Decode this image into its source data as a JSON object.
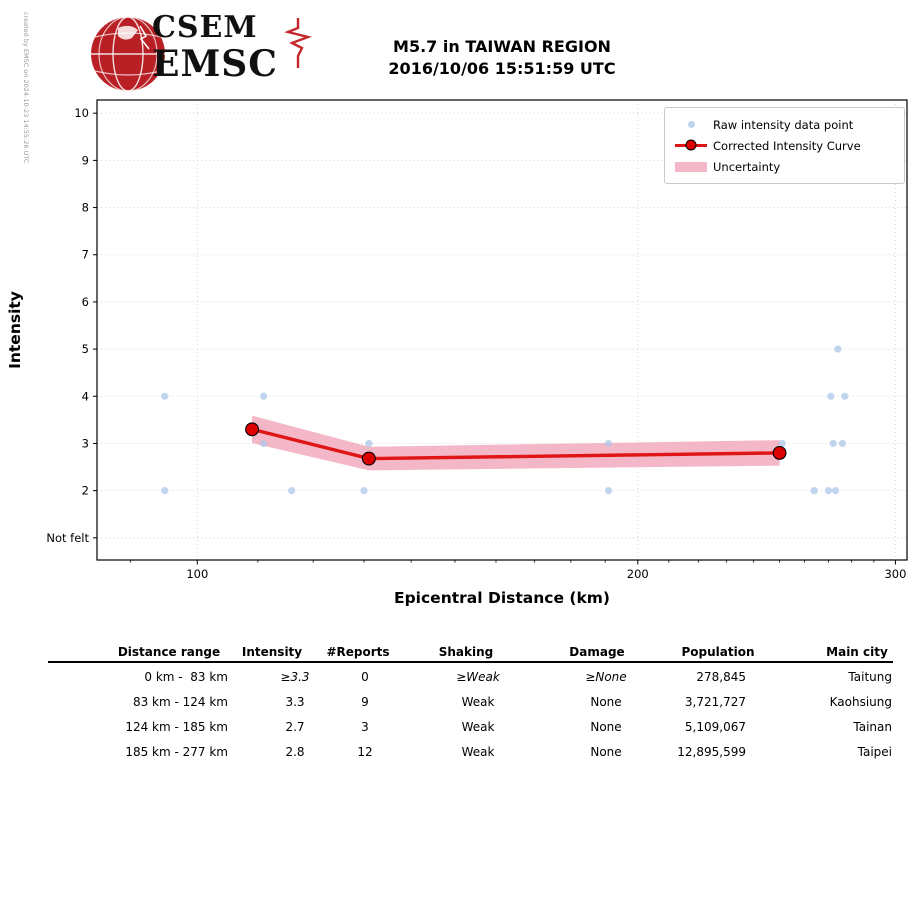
{
  "credit": "created by EMSC on 2024-10-23 14:55:26 UTC",
  "logo": {
    "org_top": "CSEM",
    "org_bottom": "EMSC"
  },
  "title": {
    "line1": "M5.7 in TAIWAN REGION",
    "line2": "2016/10/06 15:51:59 UTC"
  },
  "legend": {
    "raw": "Raw intensity data point",
    "curve": "Corrected Intensity Curve",
    "uncertainty": "Uncertainty"
  },
  "colors": {
    "raw_point": "#aec7e8",
    "curve": "#e01515",
    "marker_face": "#dd0000",
    "band": "#f2afc1",
    "grid": "#cccccc",
    "logo_red": "#b92025"
  },
  "chart_data": {
    "type": "scatter+line",
    "title": "M5.7 in TAIWAN REGION 2016/10/06 15:51:59 UTC",
    "xlabel": "Epicentral Distance (km)",
    "ylabel": "Intensity",
    "x_scale": "log",
    "x_range": [
      85.4,
      305.5
    ],
    "y_range": [
      0.53,
      10.28
    ],
    "x_ticks": [
      {
        "v": 100,
        "label": "100"
      },
      {
        "v": 200,
        "label": "200"
      },
      {
        "v": 300,
        "label": "300"
      }
    ],
    "x_minor_ticks": [
      90,
      110,
      120,
      130,
      140,
      150,
      160,
      170,
      180,
      190,
      210,
      220,
      230,
      240,
      250,
      260,
      270,
      280,
      290
    ],
    "y_ticks": [
      {
        "v": 10,
        "label": "10"
      },
      {
        "v": 9,
        "label": "9"
      },
      {
        "v": 8,
        "label": "8"
      },
      {
        "v": 7,
        "label": "7"
      },
      {
        "v": 6,
        "label": "6"
      },
      {
        "v": 5,
        "label": "5"
      },
      {
        "v": 4,
        "label": "4"
      },
      {
        "v": 3,
        "label": "3"
      },
      {
        "v": 2,
        "label": "2"
      },
      {
        "v": 1,
        "label": "Not felt"
      }
    ],
    "grid": true,
    "legend_position": "upper right",
    "raw_points": [
      [
        95,
        4
      ],
      [
        95,
        2
      ],
      [
        111,
        4
      ],
      [
        111,
        3
      ],
      [
        116,
        2
      ],
      [
        130,
        2
      ],
      [
        131,
        3
      ],
      [
        191,
        3
      ],
      [
        191,
        2
      ],
      [
        251,
        3
      ],
      [
        264,
        2
      ],
      [
        270,
        2
      ],
      [
        271,
        4
      ],
      [
        272,
        3
      ],
      [
        273,
        2
      ],
      [
        274,
        5
      ],
      [
        276,
        3
      ],
      [
        277,
        4
      ]
    ],
    "corrected_curve": [
      [
        109,
        3.3
      ],
      [
        131,
        2.68
      ],
      [
        250,
        2.8
      ]
    ],
    "uncertainty_halfwidth": [
      0.29,
      0.25,
      0.27
    ]
  },
  "table": {
    "headers": [
      "Distance range",
      "Intensity",
      "#Reports",
      "Shaking",
      "Damage",
      "Population",
      "Main city"
    ],
    "col_keys": [
      "range",
      "intensity",
      "reports",
      "shaking",
      "damage",
      "population",
      "city"
    ],
    "rows": [
      {
        "range": "0 km -  83 km",
        "intensity": "≥3.3",
        "reports": "0",
        "shaking": "≥Weak",
        "damage": "≥None",
        "population": "278,845",
        "city": "Taitung"
      },
      {
        "range": "83 km - 124 km",
        "intensity": "3.3",
        "reports": "9",
        "shaking": "Weak",
        "damage": "None",
        "population": "3,721,727",
        "city": "Kaohsiung"
      },
      {
        "range": "124 km - 185 km",
        "intensity": "2.7",
        "reports": "3",
        "shaking": "Weak",
        "damage": "None",
        "population": "5,109,067",
        "city": "Tainan"
      },
      {
        "range": "185 km - 277 km",
        "intensity": "2.8",
        "reports": "12",
        "shaking": "Weak",
        "damage": "None",
        "population": "12,895,599",
        "city": "Taipei"
      }
    ]
  }
}
